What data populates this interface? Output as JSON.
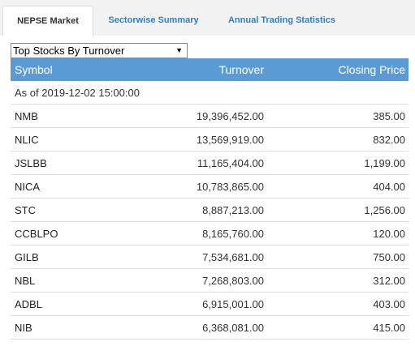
{
  "tabs": [
    {
      "label": "NEPSE Market",
      "active": true
    },
    {
      "label": "Sectorwise Summary",
      "active": false
    },
    {
      "label": "Annual Trading Statistics",
      "active": false
    }
  ],
  "select": {
    "selected": "Top Stocks By Turnover"
  },
  "table": {
    "headers": {
      "symbol": "Symbol",
      "turnover": "Turnover",
      "closing_price": "Closing Price"
    },
    "as_of": "As of 2019-12-02 15:00:00",
    "rows": [
      {
        "symbol": "NMB",
        "turnover": "19,396,452.00",
        "closing_price": "385.00"
      },
      {
        "symbol": "NLIC",
        "turnover": "13,569,919.00",
        "closing_price": "832.00"
      },
      {
        "symbol": "JSLBB",
        "turnover": "11,165,404.00",
        "closing_price": "1,199.00"
      },
      {
        "symbol": "NICA",
        "turnover": "10,783,865.00",
        "closing_price": "404.00"
      },
      {
        "symbol": "STC",
        "turnover": "8,887,213.00",
        "closing_price": "1,256.00"
      },
      {
        "symbol": "CCBLPO",
        "turnover": "8,165,760.00",
        "closing_price": "120.00"
      },
      {
        "symbol": "GILB",
        "turnover": "7,534,681.00",
        "closing_price": "750.00"
      },
      {
        "symbol": "NBL",
        "turnover": "7,268,803.00",
        "closing_price": "312.00"
      },
      {
        "symbol": "ADBL",
        "turnover": "6,915,001.00",
        "closing_price": "403.00"
      },
      {
        "symbol": "NIB",
        "turnover": "6,368,081.00",
        "closing_price": "415.00"
      }
    ]
  },
  "colors": {
    "header_bg": "#5b9bd5",
    "tab_link": "#2f7fc1",
    "tab_bar_bg": "#f2f2f2"
  },
  "icons": {
    "select_caret": "caret-down-icon"
  }
}
